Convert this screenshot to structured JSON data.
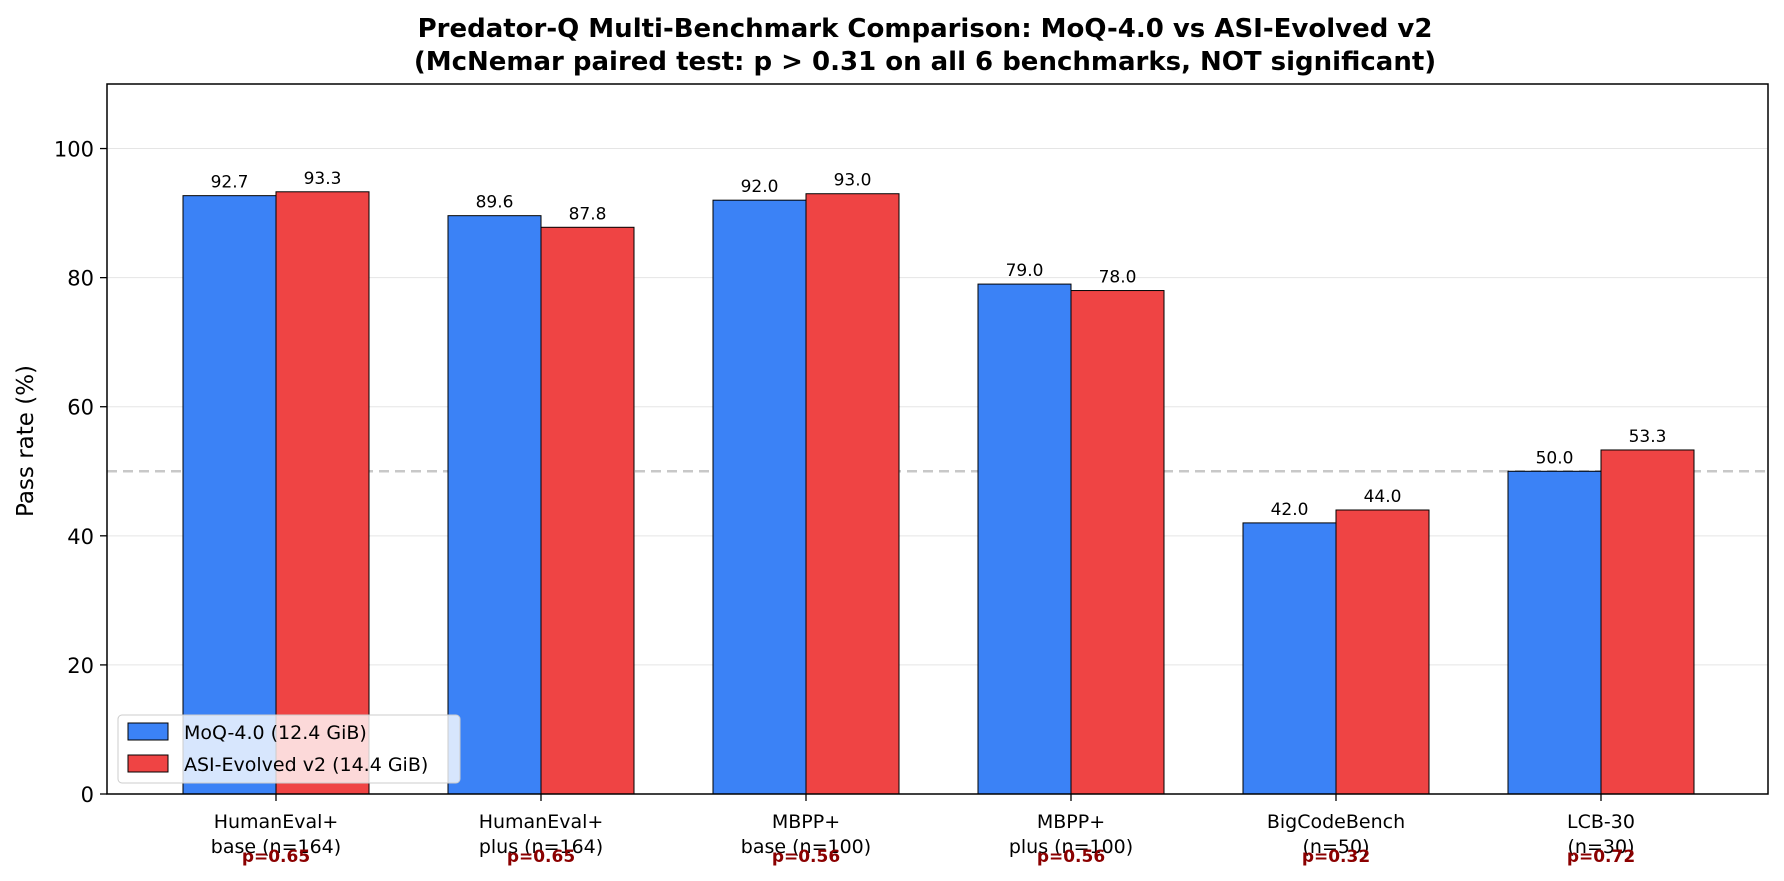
{
  "chart_data": {
    "type": "bar",
    "title": "Predator-Q Multi-Benchmark Comparison: MoQ-4.0 vs ASI-Evolved v2",
    "subtitle": "(McNemar paired test: p > 0.31 on all 6 benchmarks, NOT significant)",
    "ylabel": "Pass rate (%)",
    "xlabel": "",
    "ylim": [
      0,
      110
    ],
    "yticks": [
      0,
      20,
      40,
      60,
      80,
      100
    ],
    "grid": "horizontal",
    "reference_line": 50,
    "legend_position": "bottom-left",
    "categories": [
      [
        "HumanEval+",
        "base (n=164)"
      ],
      [
        "HumanEval+",
        "plus (n=164)"
      ],
      [
        "MBPP+",
        "base (n=100)"
      ],
      [
        "MBPP+",
        "plus (n=100)"
      ],
      [
        "BigCodeBench",
        "(n=50)"
      ],
      [
        "LCB-30",
        "(n=30)"
      ]
    ],
    "p_values": [
      "p=0.65",
      "p=0.65",
      "p=0.56",
      "p=0.56",
      "p=0.32",
      "p=0.72"
    ],
    "series": [
      {
        "name": "MoQ-4.0 (12.4 GiB)",
        "color": "#3b82f6",
        "values": [
          92.7,
          89.6,
          92.0,
          79.0,
          42.0,
          50.0
        ],
        "labels": [
          "92.7",
          "89.6",
          "92.0",
          "79.0",
          "42.0",
          "50.0"
        ]
      },
      {
        "name": "ASI-Evolved v2 (14.4 GiB)",
        "color": "#ef4444",
        "values": [
          93.3,
          87.8,
          93.0,
          78.0,
          44.0,
          53.3
        ],
        "labels": [
          "93.3",
          "87.8",
          "93.0",
          "78.0",
          "44.0",
          "53.3"
        ]
      }
    ],
    "colors": {
      "p_value": "#8b0000",
      "grid": "#e5e5e5",
      "reference": "#c8c8c8"
    }
  }
}
